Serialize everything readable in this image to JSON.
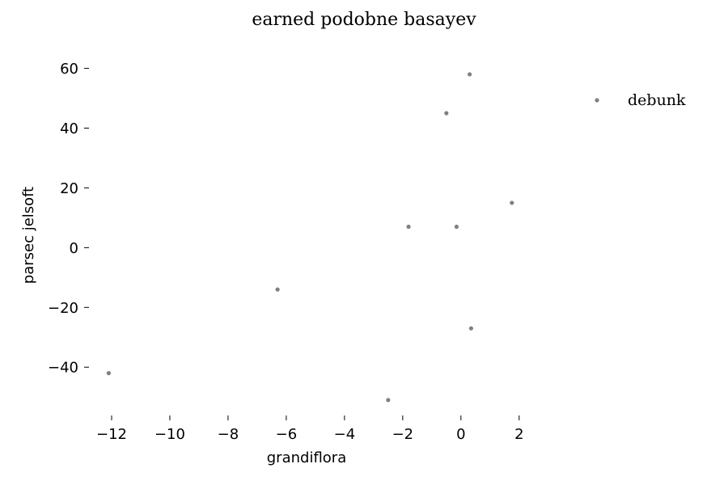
{
  "chart_data": {
    "type": "scatter",
    "title": "earned podobne basayev",
    "xlabel": "grandiflora",
    "ylabel": "parsec jelsoft",
    "xlim": [
      -12.5,
      2.2
    ],
    "ylim": [
      -54,
      68
    ],
    "xticks": [
      -12,
      -10,
      -8,
      -6,
      -4,
      -2,
      0,
      2
    ],
    "yticks": [
      -40,
      -20,
      0,
      20,
      40,
      60
    ],
    "xtick_labels": [
      "−12",
      "−10",
      "−8",
      "−6",
      "−4",
      "−2",
      "0",
      "2"
    ],
    "ytick_labels": [
      "−40",
      "−20",
      "0",
      "20",
      "40",
      "60"
    ],
    "grid": false,
    "legend_position": "top-right",
    "series": [
      {
        "name": "debunk",
        "color": "#808080",
        "points": [
          {
            "x": 0.3,
            "y": 58
          },
          {
            "x": -0.5,
            "y": 45
          },
          {
            "x": 1.75,
            "y": 15
          },
          {
            "x": -1.8,
            "y": 7
          },
          {
            "x": -0.15,
            "y": 7
          },
          {
            "x": -6.3,
            "y": -14
          },
          {
            "x": 0.35,
            "y": -27
          },
          {
            "x": -12.1,
            "y": -42
          },
          {
            "x": -2.5,
            "y": -51
          }
        ]
      }
    ]
  }
}
